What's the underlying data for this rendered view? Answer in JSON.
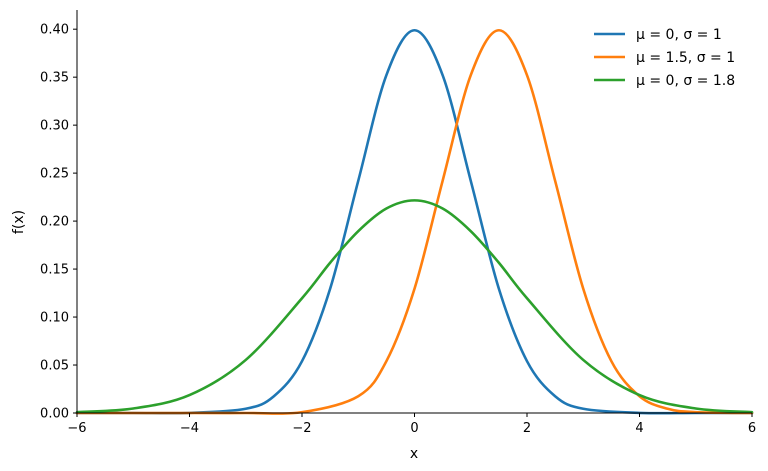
{
  "chart_data": {
    "type": "line",
    "xlabel": "x",
    "ylabel": "f(x)",
    "xlim": [
      -6,
      6
    ],
    "ylim": [
      0,
      0.42
    ],
    "x_ticks": [
      -6,
      -4,
      -2,
      0,
      2,
      4,
      6
    ],
    "x_tick_labels": [
      "−6",
      "−4",
      "−2",
      "0",
      "2",
      "4",
      "6"
    ],
    "y_ticks": [
      0,
      0.05,
      0.1,
      0.15,
      0.2,
      0.25,
      0.3,
      0.35,
      0.4
    ],
    "y_tick_labels": [
      "0.00",
      "0.05",
      "0.10",
      "0.15",
      "0.20",
      "0.25",
      "0.30",
      "0.35",
      "0.40"
    ],
    "grid": false,
    "legend_position": "top-right",
    "series": [
      {
        "name": "μ = 0,  σ = 1",
        "color": "#1f77b4",
        "x": [
          -6,
          -5,
          -4,
          -3,
          -2.5,
          -2,
          -1.5,
          -1,
          -0.5,
          0,
          0.5,
          1,
          1.5,
          2,
          2.5,
          3,
          4,
          5,
          6
        ],
        "y": [
          0.0,
          0.0,
          0.0001,
          0.0044,
          0.0175,
          0.054,
          0.1295,
          0.242,
          0.3521,
          0.3989,
          0.3521,
          0.242,
          0.1295,
          0.054,
          0.0175,
          0.0044,
          0.0001,
          0.0,
          0.0
        ]
      },
      {
        "name": "μ = 1.5,  σ = 1",
        "color": "#ff7f0e",
        "x": [
          -6,
          -4,
          -3,
          -2,
          -1,
          -0.5,
          0,
          0.5,
          1,
          1.5,
          2,
          2.5,
          3,
          3.5,
          4,
          4.5,
          5,
          6
        ],
        "y": [
          0.0,
          0.0,
          0.0,
          0.0009,
          0.0175,
          0.054,
          0.1295,
          0.242,
          0.3521,
          0.3989,
          0.3521,
          0.242,
          0.1295,
          0.054,
          0.0175,
          0.0044,
          0.0009,
          0.0
        ]
      },
      {
        "name": "μ = 0,  σ = 1.8",
        "color": "#2ca02c",
        "x": [
          -6,
          -5,
          -4,
          -3,
          -2,
          -1.5,
          -1,
          -0.5,
          0,
          0.5,
          1,
          1.5,
          2,
          3,
          4,
          5,
          6
        ],
        "y": [
          0.0009,
          0.0047,
          0.0187,
          0.0553,
          0.1196,
          0.1566,
          0.1895,
          0.2131,
          0.2216,
          0.2131,
          0.1895,
          0.1566,
          0.1196,
          0.0553,
          0.0187,
          0.0047,
          0.0009
        ]
      }
    ]
  }
}
